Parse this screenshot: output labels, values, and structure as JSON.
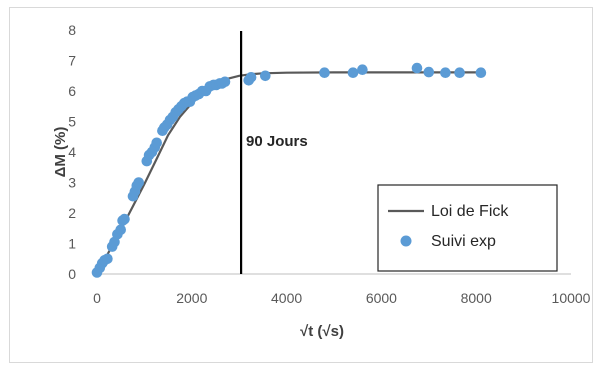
{
  "chart_data": {
    "type": "scatter",
    "title": "",
    "xlabel": "√t (√s)",
    "ylabel": "ΔM (%)",
    "xlim": [
      0,
      10000
    ],
    "ylim": [
      0,
      8
    ],
    "x_ticks": [
      "0",
      "2000",
      "4000",
      "6000",
      "8000",
      "10000"
    ],
    "y_ticks": [
      "0",
      "1",
      "2",
      "3",
      "4",
      "5",
      "6",
      "7",
      "8"
    ],
    "grid": false,
    "legend_position": "bottom-right",
    "annotation": {
      "text": "90 Jours",
      "x": 3040
    },
    "colors": {
      "fit_line": "#595959",
      "points": "#5b9bd5",
      "vline": "#000000"
    },
    "series": [
      {
        "name": "Loi de Fick",
        "type": "line",
        "x": [
          0,
          250,
          500,
          750,
          1000,
          1250,
          1500,
          1750,
          2000,
          2250,
          2500,
          2750,
          3000,
          3250,
          3500,
          4000,
          5000,
          6000,
          7000,
          8100
        ],
        "values": [
          0,
          0.72,
          1.45,
          2.2,
          2.95,
          3.75,
          4.55,
          5.15,
          5.6,
          5.95,
          6.22,
          6.4,
          6.5,
          6.55,
          6.58,
          6.6,
          6.61,
          6.61,
          6.61,
          6.61
        ]
      },
      {
        "name": "Suivi exp",
        "type": "scatter",
        "x": [
          0,
          60,
          110,
          160,
          220,
          320,
          370,
          430,
          500,
          540,
          580,
          760,
          800,
          840,
          880,
          1050,
          1100,
          1160,
          1220,
          1260,
          1380,
          1420,
          1480,
          1540,
          1600,
          1660,
          1720,
          1780,
          1840,
          1900,
          1960,
          2020,
          2080,
          2150,
          2220,
          2300,
          2380,
          2460,
          2520,
          2590,
          2640,
          2700,
          3200,
          3250,
          3550,
          4800,
          5400,
          5600,
          6750,
          7000,
          7350,
          7650,
          8100
        ],
        "values": [
          0.05,
          0.2,
          0.35,
          0.45,
          0.5,
          0.9,
          1.05,
          1.3,
          1.45,
          1.75,
          1.8,
          2.55,
          2.7,
          2.9,
          3.0,
          3.7,
          3.9,
          4.0,
          4.15,
          4.3,
          4.7,
          4.8,
          4.9,
          5.05,
          5.15,
          5.3,
          5.4,
          5.5,
          5.6,
          5.65,
          5.65,
          5.8,
          5.85,
          5.9,
          6.0,
          6.0,
          6.15,
          6.2,
          6.2,
          6.25,
          6.25,
          6.3,
          6.35,
          6.45,
          6.5,
          6.6,
          6.6,
          6.7,
          6.75,
          6.62,
          6.6,
          6.6,
          6.6
        ]
      }
    ]
  }
}
